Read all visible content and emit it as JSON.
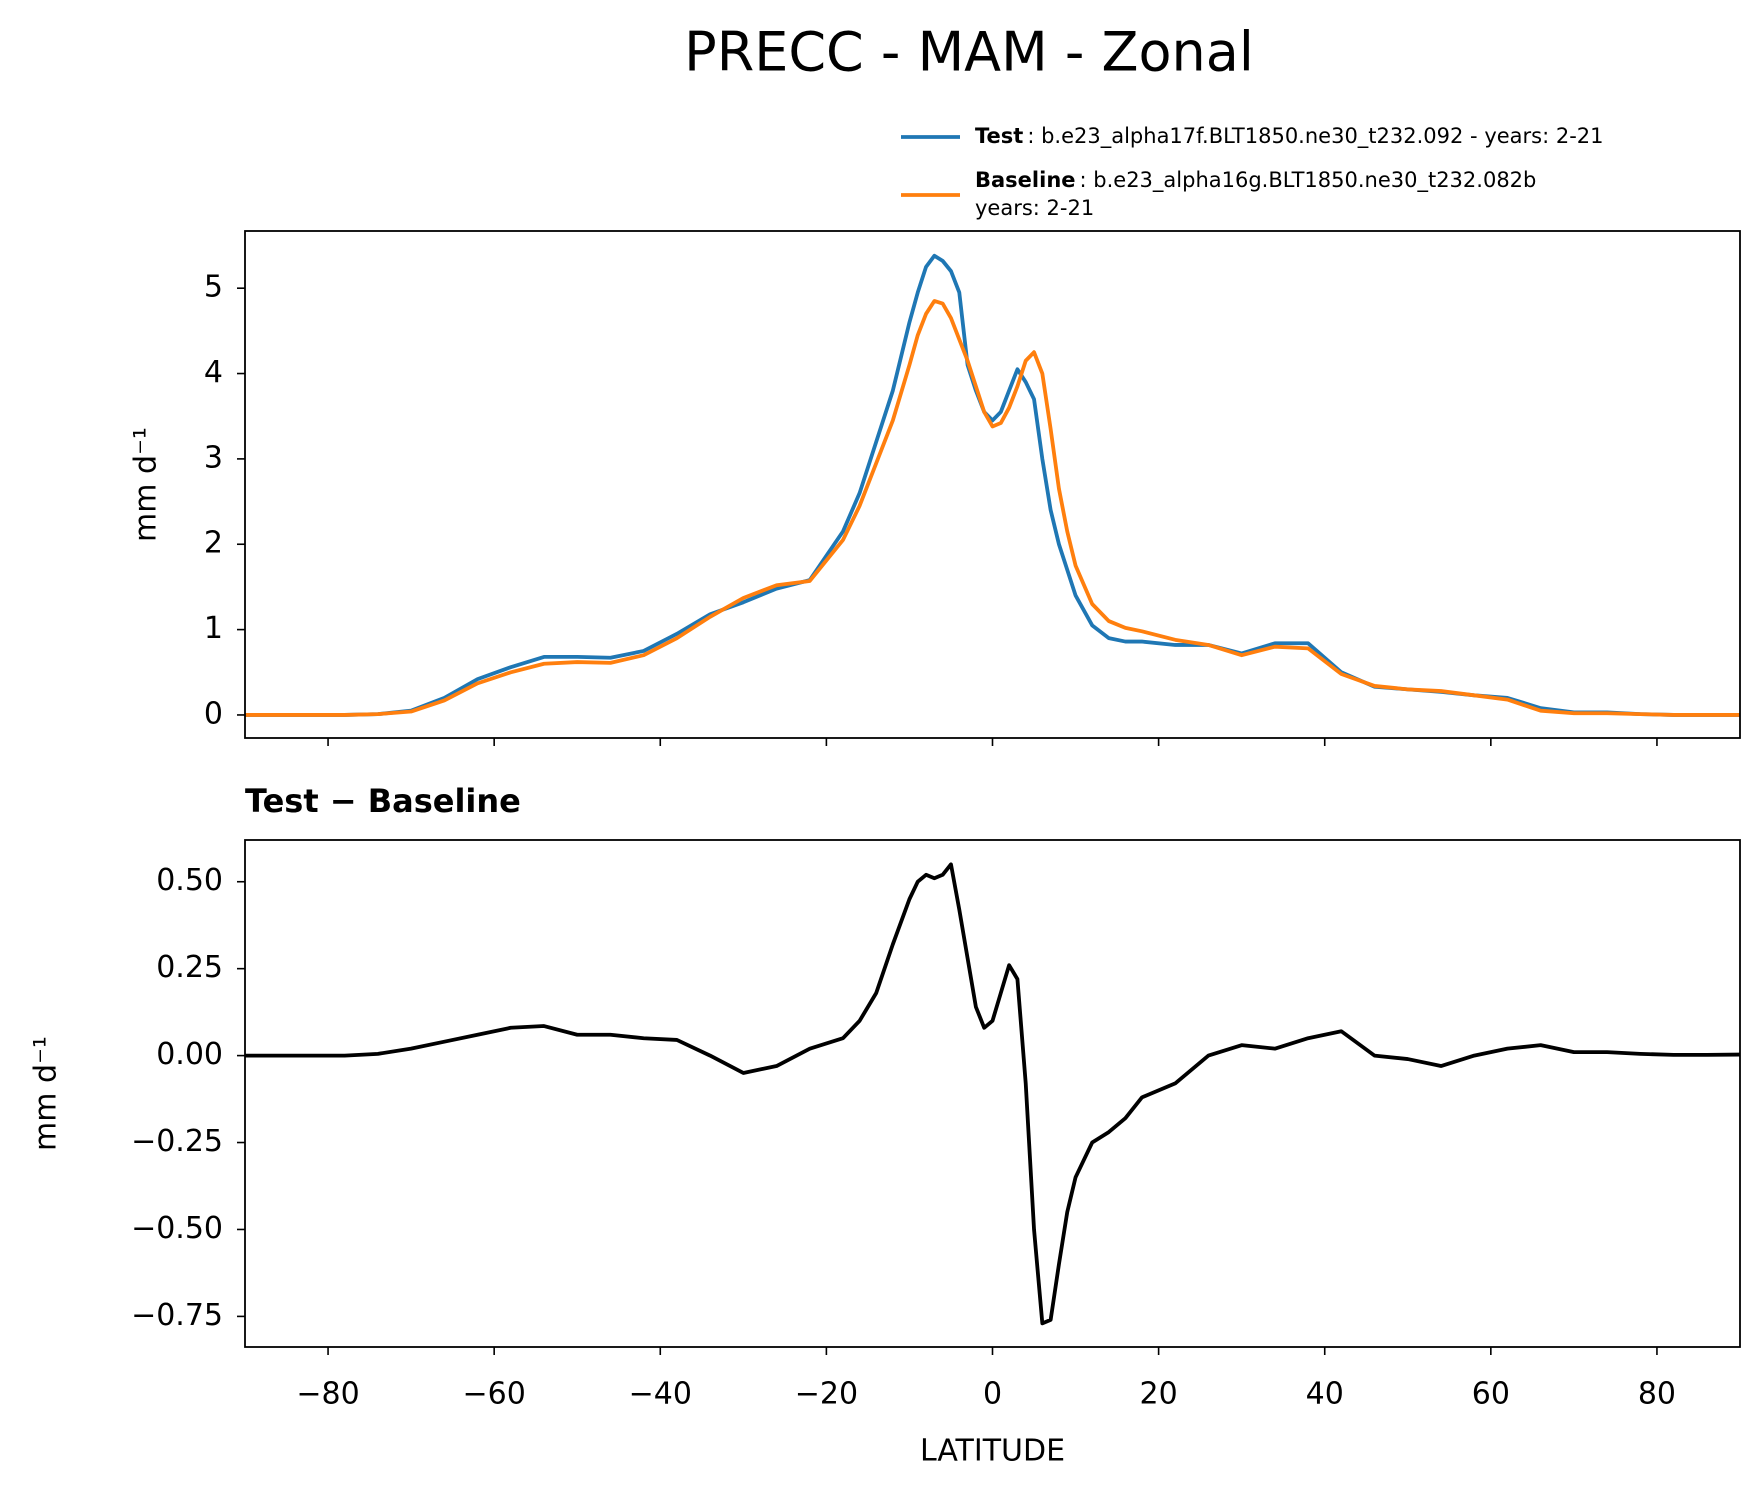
{
  "chart_data": [
    {
      "type": "line",
      "title": "PRECC - MAM - Zonal",
      "title_loc": "center",
      "ylabel": "mm d⁻¹",
      "x": [
        -90,
        -86,
        -82,
        -78,
        -74,
        -70,
        -66,
        -62,
        -58,
        -54,
        -50,
        -46,
        -42,
        -38,
        -34,
        -30,
        -26,
        -22,
        -18,
        -16,
        -14,
        -12,
        -10,
        -9,
        -8,
        -7,
        -6,
        -5,
        -4,
        -3,
        -2,
        -1,
        0,
        1,
        2,
        3,
        4,
        5,
        6,
        7,
        8,
        9,
        10,
        12,
        14,
        16,
        18,
        22,
        26,
        30,
        34,
        38,
        42,
        46,
        50,
        54,
        58,
        62,
        66,
        70,
        74,
        78,
        82,
        86,
        90
      ],
      "series": [
        {
          "name": "Test",
          "description": [
            ": b.e23_alpha17f.BLT1850.ne30_t232.092 - years: 2-21"
          ],
          "color": "#1f77b4",
          "values": [
            0,
            0,
            0,
            0,
            0.01,
            0.05,
            0.2,
            0.42,
            0.56,
            0.68,
            0.68,
            0.67,
            0.75,
            0.95,
            1.18,
            1.32,
            1.48,
            1.58,
            2.15,
            2.6,
            3.2,
            3.8,
            4.6,
            4.95,
            5.25,
            5.38,
            5.32,
            5.2,
            4.95,
            4.1,
            3.8,
            3.55,
            3.45,
            3.55,
            3.8,
            4.05,
            3.9,
            3.7,
            3.0,
            2.4,
            2.0,
            1.7,
            1.4,
            1.05,
            0.9,
            0.86,
            0.86,
            0.82,
            0.82,
            0.72,
            0.84,
            0.84,
            0.5,
            0.33,
            0.3,
            0.27,
            0.23,
            0.2,
            0.08,
            0.03,
            0.03,
            0.01,
            0,
            0,
            0
          ]
        },
        {
          "name": "Baseline",
          "description": [
            ": b.e23_alpha16g.BLT1850.ne30_t232.082b",
            "years: 2-21"
          ],
          "color": "#ff7f0e",
          "values": [
            0,
            0,
            0,
            0,
            0.01,
            0.04,
            0.17,
            0.37,
            0.5,
            0.6,
            0.62,
            0.61,
            0.7,
            0.9,
            1.15,
            1.37,
            1.52,
            1.57,
            2.05,
            2.45,
            2.95,
            3.45,
            4.1,
            4.45,
            4.7,
            4.85,
            4.82,
            4.65,
            4.4,
            4.15,
            3.85,
            3.55,
            3.38,
            3.42,
            3.6,
            3.85,
            4.15,
            4.25,
            4.0,
            3.35,
            2.65,
            2.15,
            1.75,
            1.3,
            1.1,
            1.02,
            0.98,
            0.88,
            0.82,
            0.7,
            0.8,
            0.78,
            0.48,
            0.34,
            0.3,
            0.28,
            0.23,
            0.18,
            0.05,
            0.02,
            0.02,
            0.01,
            0,
            0,
            0
          ]
        }
      ],
      "xlim": [
        -90,
        90
      ],
      "ylim": [
        -0.27,
        5.67
      ],
      "yticks": [
        0,
        1,
        2,
        3,
        4,
        5
      ],
      "xticks": [
        -80,
        -60,
        -40,
        -20,
        0,
        20,
        40,
        60,
        80
      ]
    },
    {
      "type": "line",
      "title": "Test − Baseline",
      "title_loc": "left",
      "ylabel": "mm d⁻¹",
      "xlabel": "LATITUDE",
      "x": [
        -90,
        -86,
        -82,
        -78,
        -74,
        -70,
        -66,
        -62,
        -58,
        -54,
        -50,
        -46,
        -42,
        -38,
        -34,
        -30,
        -26,
        -22,
        -18,
        -16,
        -14,
        -12,
        -10,
        -9,
        -8,
        -7,
        -6,
        -5,
        -4,
        -3,
        -2,
        -1,
        0,
        1,
        2,
        3,
        4,
        5,
        6,
        7,
        8,
        9,
        10,
        12,
        14,
        16,
        18,
        22,
        26,
        30,
        34,
        38,
        42,
        46,
        50,
        54,
        58,
        62,
        66,
        70,
        74,
        78,
        82,
        86,
        90
      ],
      "series": [
        {
          "color": "#000000",
          "values": [
            0,
            0,
            0,
            0,
            0.005,
            0.02,
            0.04,
            0.06,
            0.08,
            0.085,
            0.06,
            0.06,
            0.05,
            0.045,
            0.0,
            -0.05,
            -0.03,
            0.02,
            0.05,
            0.1,
            0.18,
            0.32,
            0.45,
            0.5,
            0.52,
            0.51,
            0.52,
            0.55,
            0.42,
            0.28,
            0.14,
            0.08,
            0.1,
            0.18,
            0.26,
            0.22,
            -0.08,
            -0.5,
            -0.77,
            -0.76,
            -0.6,
            -0.45,
            -0.35,
            -0.25,
            -0.22,
            -0.18,
            -0.12,
            -0.08,
            0.0,
            0.03,
            0.02,
            0.05,
            0.07,
            0.0,
            -0.01,
            -0.03,
            0.0,
            0.02,
            0.03,
            0.01,
            0.01,
            0.005,
            0.002,
            0.002,
            0.003
          ]
        }
      ],
      "xlim": [
        -90,
        90
      ],
      "ylim": [
        -0.838,
        0.62
      ],
      "yticks": [
        {
          "value": 0.5,
          "label": "0.50"
        },
        {
          "value": 0.25,
          "label": "0.25"
        },
        {
          "value": 0,
          "label": "0.00"
        },
        {
          "value": -0.25,
          "label": "−0.25"
        },
        {
          "value": -0.5,
          "label": "−0.50"
        },
        {
          "value": -0.75,
          "label": "−0.75"
        }
      ],
      "xticks": [
        {
          "value": -80,
          "label": "−80"
        },
        {
          "value": -60,
          "label": "−60"
        },
        {
          "value": -40,
          "label": "−40"
        },
        {
          "value": -20,
          "label": "−20"
        },
        0,
        20,
        40,
        60,
        80
      ]
    }
  ]
}
